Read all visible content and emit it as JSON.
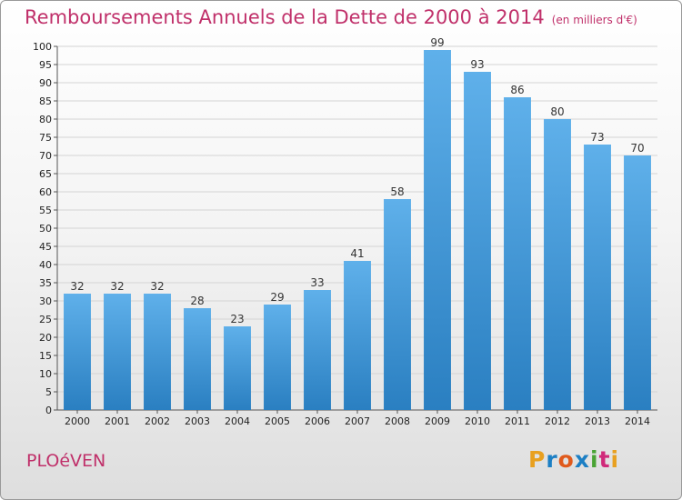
{
  "chart_data": {
    "type": "bar",
    "title": "Remboursements Annuels de la Dette de 2000 à 2014",
    "unit_note": "(en milliers d'€)",
    "categories": [
      "2000",
      "2001",
      "2002",
      "2003",
      "2004",
      "2005",
      "2006",
      "2007",
      "2008",
      "2009",
      "2010",
      "2011",
      "2012",
      "2013",
      "2014"
    ],
    "values": [
      32,
      32,
      32,
      28,
      23,
      29,
      33,
      41,
      58,
      99,
      93,
      86,
      80,
      73,
      70
    ],
    "ylim": [
      0,
      100
    ],
    "ytick_step": 5,
    "xlabel": "",
    "ylabel": "",
    "grid": true,
    "bar_color_top": "#5fb0ea",
    "bar_color_bottom": "#2a7fc1"
  },
  "footer": {
    "commune": "PLOéVEN",
    "brand": "Proxiti",
    "brand_colors": [
      "#e8a020",
      "#1c7fc4",
      "#e05a1c",
      "#1c7fc4",
      "#4aa334",
      "#d02a7a",
      "#e8a020"
    ]
  }
}
